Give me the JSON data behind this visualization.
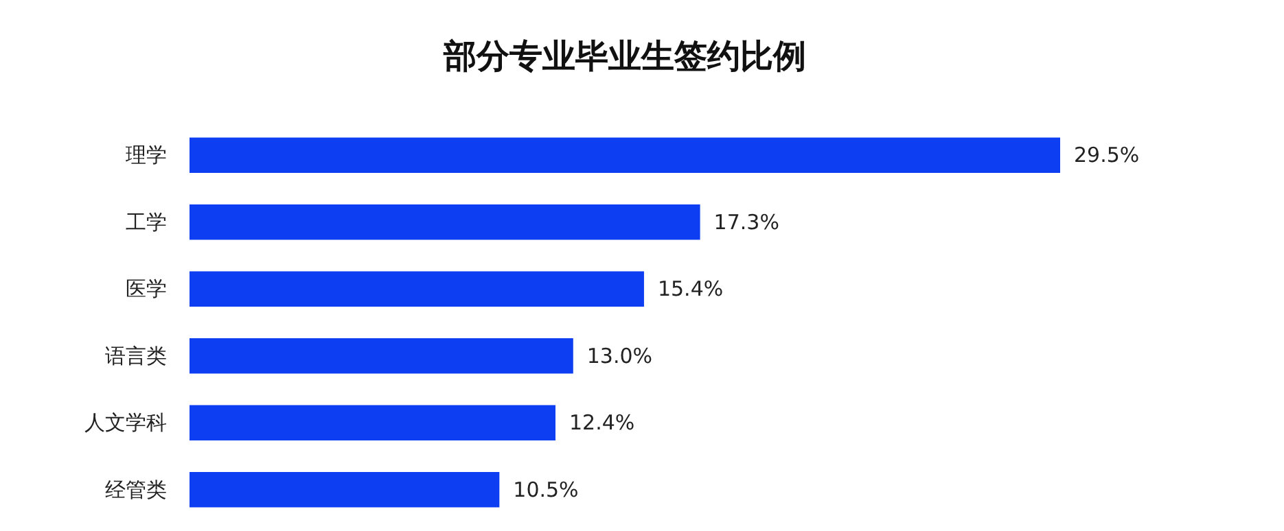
{
  "chart_data": {
    "type": "bar",
    "orientation": "horizontal",
    "title": "部分专业毕业生签约比例",
    "categories": [
      "理学",
      "工学",
      "医学",
      "语言类",
      "人文学科",
      "经管类"
    ],
    "values": [
      29.5,
      17.3,
      15.4,
      13.0,
      12.4,
      10.5
    ],
    "value_labels": [
      "29.5%",
      "17.3%",
      "15.4%",
      "13.0%",
      "12.4%",
      "10.5%"
    ],
    "color": "#0d3ef2"
  }
}
